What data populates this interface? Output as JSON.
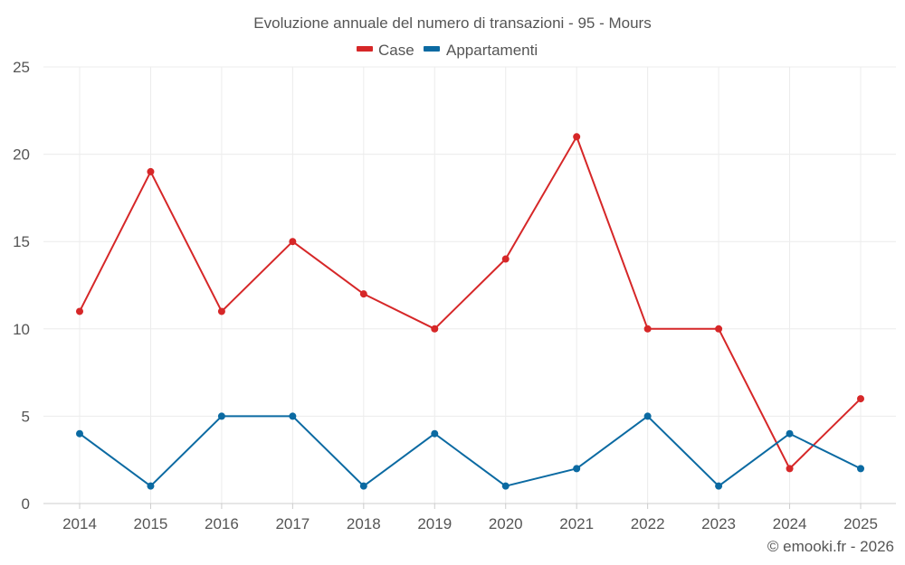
{
  "chart_data": {
    "type": "line",
    "title": "Evoluzione annuale del numero di transazioni - 95 - Mours",
    "categories": [
      "2014",
      "2015",
      "2016",
      "2017",
      "2018",
      "2019",
      "2020",
      "2021",
      "2022",
      "2023",
      "2024",
      "2025"
    ],
    "series": [
      {
        "name": "Case",
        "color": "#d62728",
        "values": [
          11,
          19,
          11,
          15,
          12,
          10,
          14,
          21,
          10,
          10,
          2,
          6
        ]
      },
      {
        "name": "Appartamenti",
        "color": "#0b6aa2",
        "values": [
          4,
          1,
          5,
          5,
          1,
          4,
          1,
          2,
          5,
          1,
          4,
          2
        ]
      }
    ],
    "ylim": [
      0,
      25
    ],
    "yticks": [
      0,
      5,
      10,
      15,
      20,
      25
    ],
    "xlabel": "",
    "ylabel": "",
    "grid": true,
    "legend": "top-center"
  },
  "credit": "© emooki.fr - 2026"
}
